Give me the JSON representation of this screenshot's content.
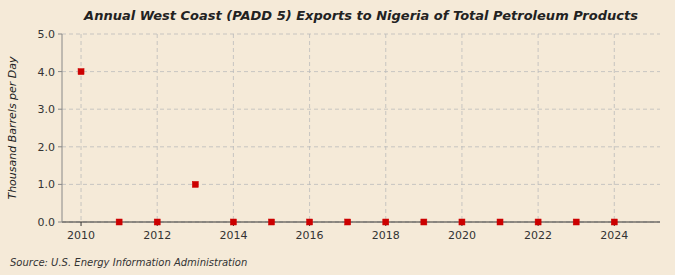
{
  "chart_data": {
    "type": "scatter",
    "title": "Annual West Coast (PADD 5) Exports to Nigeria of Total Petroleum Products",
    "ylabel": "Thousand Barrels per Day",
    "source": "Source: U.S. Energy Information Administration",
    "x": [
      2010,
      2011,
      2012,
      2013,
      2014,
      2015,
      2016,
      2017,
      2018,
      2019,
      2020,
      2021,
      2022,
      2023,
      2024
    ],
    "values": [
      4.0,
      0.0,
      0.0,
      1.0,
      0.0,
      0.0,
      0.0,
      0.0,
      0.0,
      0.0,
      0.0,
      0.0,
      0.0,
      0.0,
      0.0
    ],
    "color": "#cc0000",
    "marker": "square",
    "xlim": [
      2009.5,
      2025.2
    ],
    "xticks": [
      2010,
      2012,
      2014,
      2016,
      2018,
      2020,
      2022,
      2024
    ],
    "ylim": [
      0.0,
      5.0
    ],
    "yticks": [
      {
        "value": 0.0,
        "label": "0.0"
      },
      {
        "value": 1.0,
        "label": "1.0"
      },
      {
        "value": 2.0,
        "label": "2.0"
      },
      {
        "value": 3.0,
        "label": "3.0"
      },
      {
        "value": 4.0,
        "label": "4.0"
      },
      {
        "value": 5.0,
        "label": "5.0"
      }
    ],
    "grid": true
  }
}
